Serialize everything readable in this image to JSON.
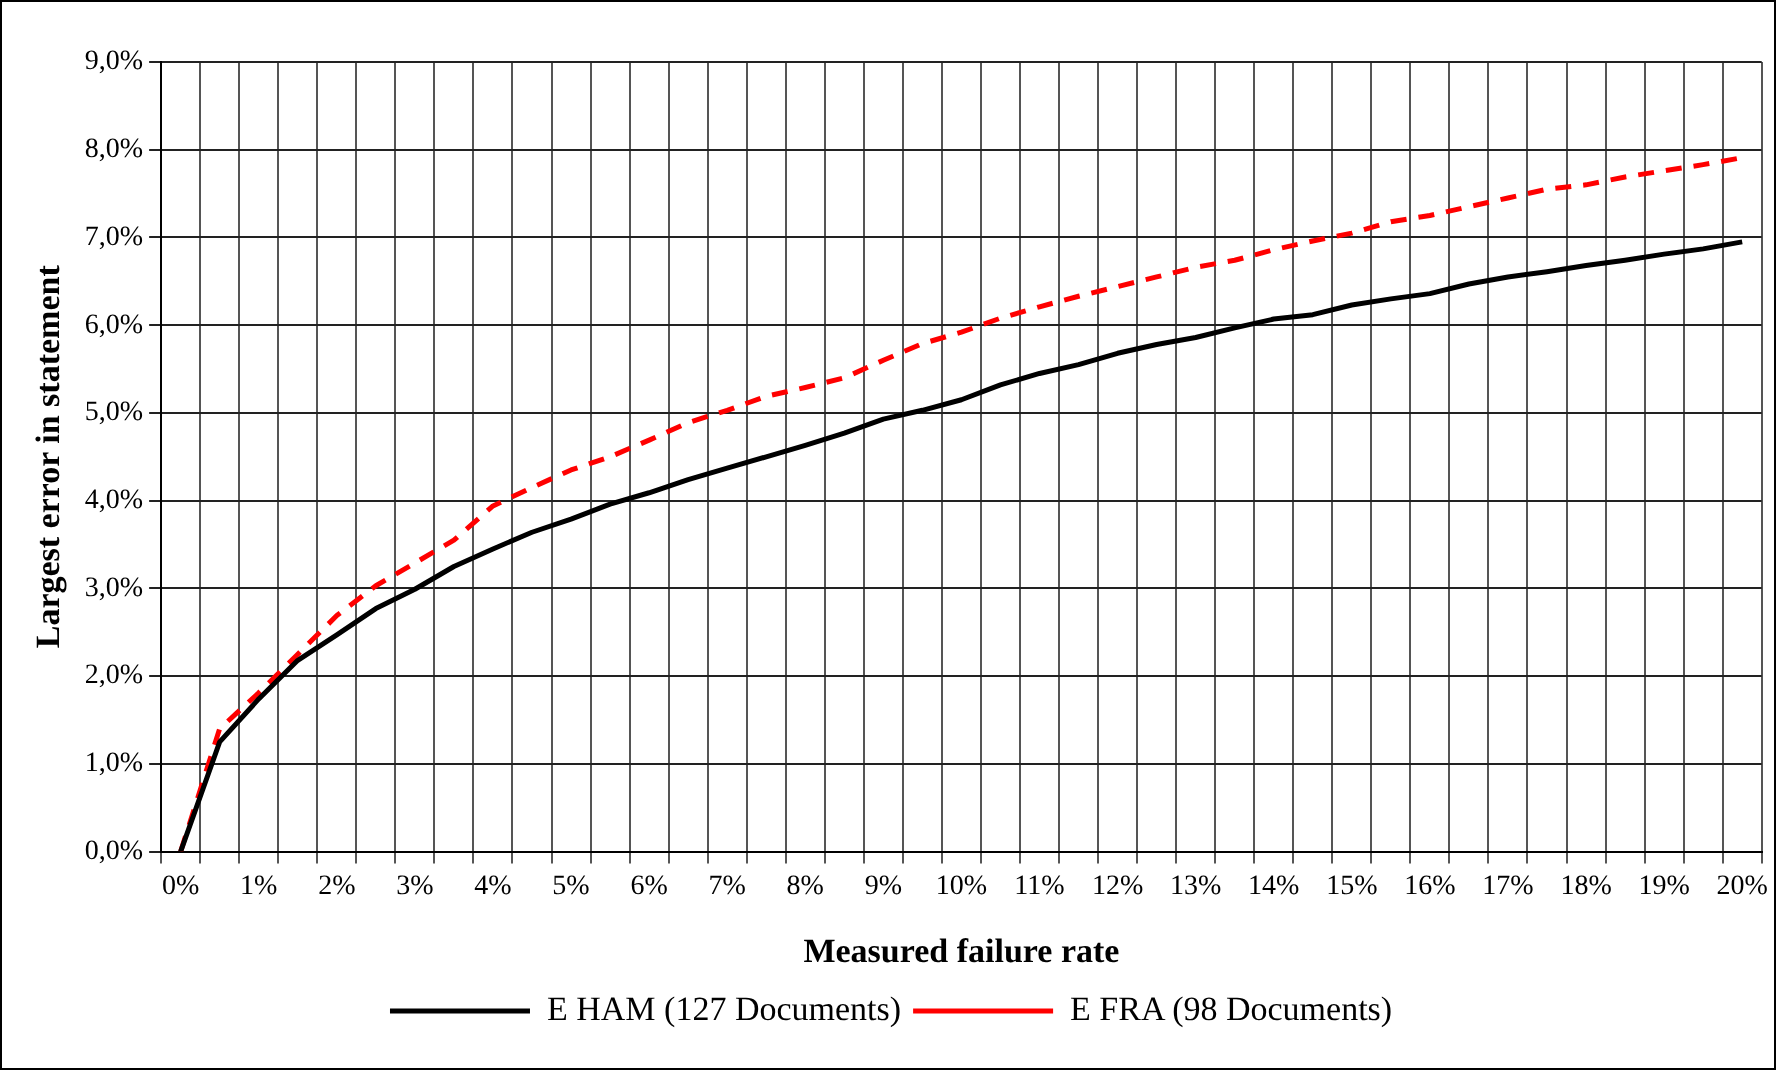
{
  "chart_data": {
    "type": "line",
    "xlabel": "Measured failure rate",
    "ylabel": "Largest error in statement",
    "categories": [
      "0%",
      null,
      "1%",
      null,
      "2%",
      null,
      "3%",
      null,
      "4%",
      null,
      "5%",
      null,
      "6%",
      null,
      "7%",
      null,
      "8%",
      null,
      "9%",
      null,
      "10%",
      null,
      "11%",
      null,
      "12%",
      null,
      "13%",
      null,
      "14%",
      null,
      "15%",
      null,
      "16%",
      null,
      "17%",
      null,
      "18%",
      null,
      "19%",
      null,
      "20%"
    ],
    "series": [
      {
        "name": "E HAM (127 Documents)",
        "color": "#000000",
        "line_style": "solid",
        "values": [
          0,
          1.25,
          1.74,
          2.18,
          2.47,
          2.77,
          2.99,
          3.25,
          3.45,
          3.64,
          3.79,
          3.96,
          4.09,
          4.24,
          4.37,
          4.5,
          4.63,
          4.77,
          4.93,
          5.03,
          5.15,
          5.32,
          5.45,
          5.55,
          5.68,
          5.78,
          5.86,
          5.97,
          6.07,
          6.12,
          6.23,
          6.3,
          6.36,
          6.47,
          6.55,
          6.61,
          6.68,
          6.74,
          6.81,
          6.87,
          6.95
        ]
      },
      {
        "name": "E FRA (98 Documents)",
        "color": "#ff0000",
        "line_style": "dashed",
        "values": [
          0,
          1.4,
          1.81,
          2.25,
          2.69,
          3.03,
          3.29,
          3.55,
          3.94,
          4.15,
          4.35,
          4.5,
          4.69,
          4.89,
          5.03,
          5.19,
          5.29,
          5.4,
          5.6,
          5.79,
          5.92,
          6.08,
          6.21,
          6.33,
          6.44,
          6.55,
          6.66,
          6.74,
          6.86,
          6.96,
          7.05,
          7.18,
          7.25,
          7.35,
          7.45,
          7.55,
          7.6,
          7.69,
          7.76,
          7.83,
          7.91
        ]
      }
    ],
    "ylim": [
      0,
      9
    ],
    "yticks": [
      {
        "value": 0,
        "label": "0,0%"
      },
      {
        "value": 1,
        "label": "1,0%"
      },
      {
        "value": 2,
        "label": "2,0%"
      },
      {
        "value": 3,
        "label": "3,0%"
      },
      {
        "value": 4,
        "label": "4,0%"
      },
      {
        "value": 5,
        "label": "5,0%"
      },
      {
        "value": 6,
        "label": "6,0%"
      },
      {
        "value": 7,
        "label": "7,0%"
      },
      {
        "value": 8,
        "label": "8,0%"
      },
      {
        "value": 9,
        "label": "9,0%"
      }
    ],
    "grid": true,
    "legend": "bottom",
    "marker": "none"
  }
}
